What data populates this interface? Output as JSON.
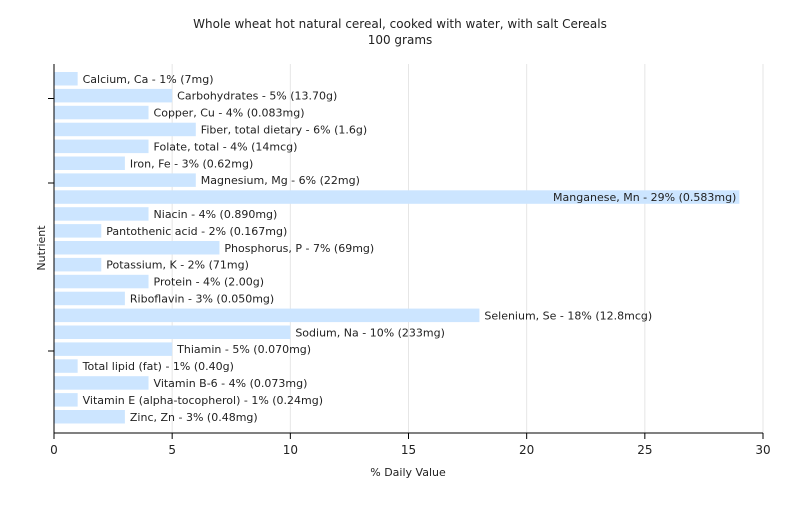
{
  "chart_data": {
    "type": "bar",
    "orientation": "horizontal",
    "title": "Whole wheat hot natural cereal, cooked with water, with salt Cereals",
    "subtitle": "100 grams",
    "xlabel": "% Daily Value",
    "ylabel": "Nutrient",
    "xlim": [
      0,
      30
    ],
    "xticks": [
      0,
      5,
      10,
      15,
      20,
      25,
      30
    ],
    "grid": true,
    "legend": "none",
    "colors": {
      "bar": "#cce5ff",
      "grid": "#e6e6e6",
      "axis": "#000000",
      "text": "#222222"
    },
    "categories": [
      "Calcium, Ca",
      "Carbohydrates",
      "Copper, Cu",
      "Fiber, total dietary",
      "Folate, total",
      "Iron, Fe",
      "Magnesium, Mg",
      "Manganese, Mn",
      "Niacin",
      "Pantothenic acid",
      "Phosphorus, P",
      "Potassium, K",
      "Protein",
      "Riboflavin",
      "Selenium, Se",
      "Sodium, Na",
      "Thiamin",
      "Total lipid (fat)",
      "Vitamin B-6",
      "Vitamin E (alpha-tocopherol)",
      "Zinc, Zn"
    ],
    "values": [
      1,
      5,
      4,
      6,
      4,
      3,
      6,
      29,
      4,
      2,
      7,
      2,
      4,
      3,
      18,
      10,
      5,
      1,
      4,
      1,
      3
    ],
    "labels": [
      "Calcium, Ca - 1% (7mg)",
      "Carbohydrates - 5% (13.70g)",
      "Copper, Cu - 4% (0.083mg)",
      "Fiber, total dietary - 6% (1.6g)",
      "Folate, total - 4% (14mcg)",
      "Iron, Fe - 3% (0.62mg)",
      "Magnesium, Mg - 6% (22mg)",
      "Manganese, Mn - 29% (0.583mg)",
      "Niacin - 4% (0.890mg)",
      "Pantothenic acid - 2% (0.167mg)",
      "Phosphorus, P - 7% (69mg)",
      "Potassium, K - 2% (71mg)",
      "Protein - 4% (2.00g)",
      "Riboflavin - 3% (0.050mg)",
      "Selenium, Se - 18% (12.8mcg)",
      "Sodium, Na - 10% (233mg)",
      "Thiamin - 5% (0.070mg)",
      "Total lipid (fat) - 1% (0.40g)",
      "Vitamin B-6 - 4% (0.073mg)",
      "Vitamin E (alpha-tocopherol) - 1% (0.24mg)",
      "Zinc, Zn - 3% (0.48mg)"
    ]
  }
}
